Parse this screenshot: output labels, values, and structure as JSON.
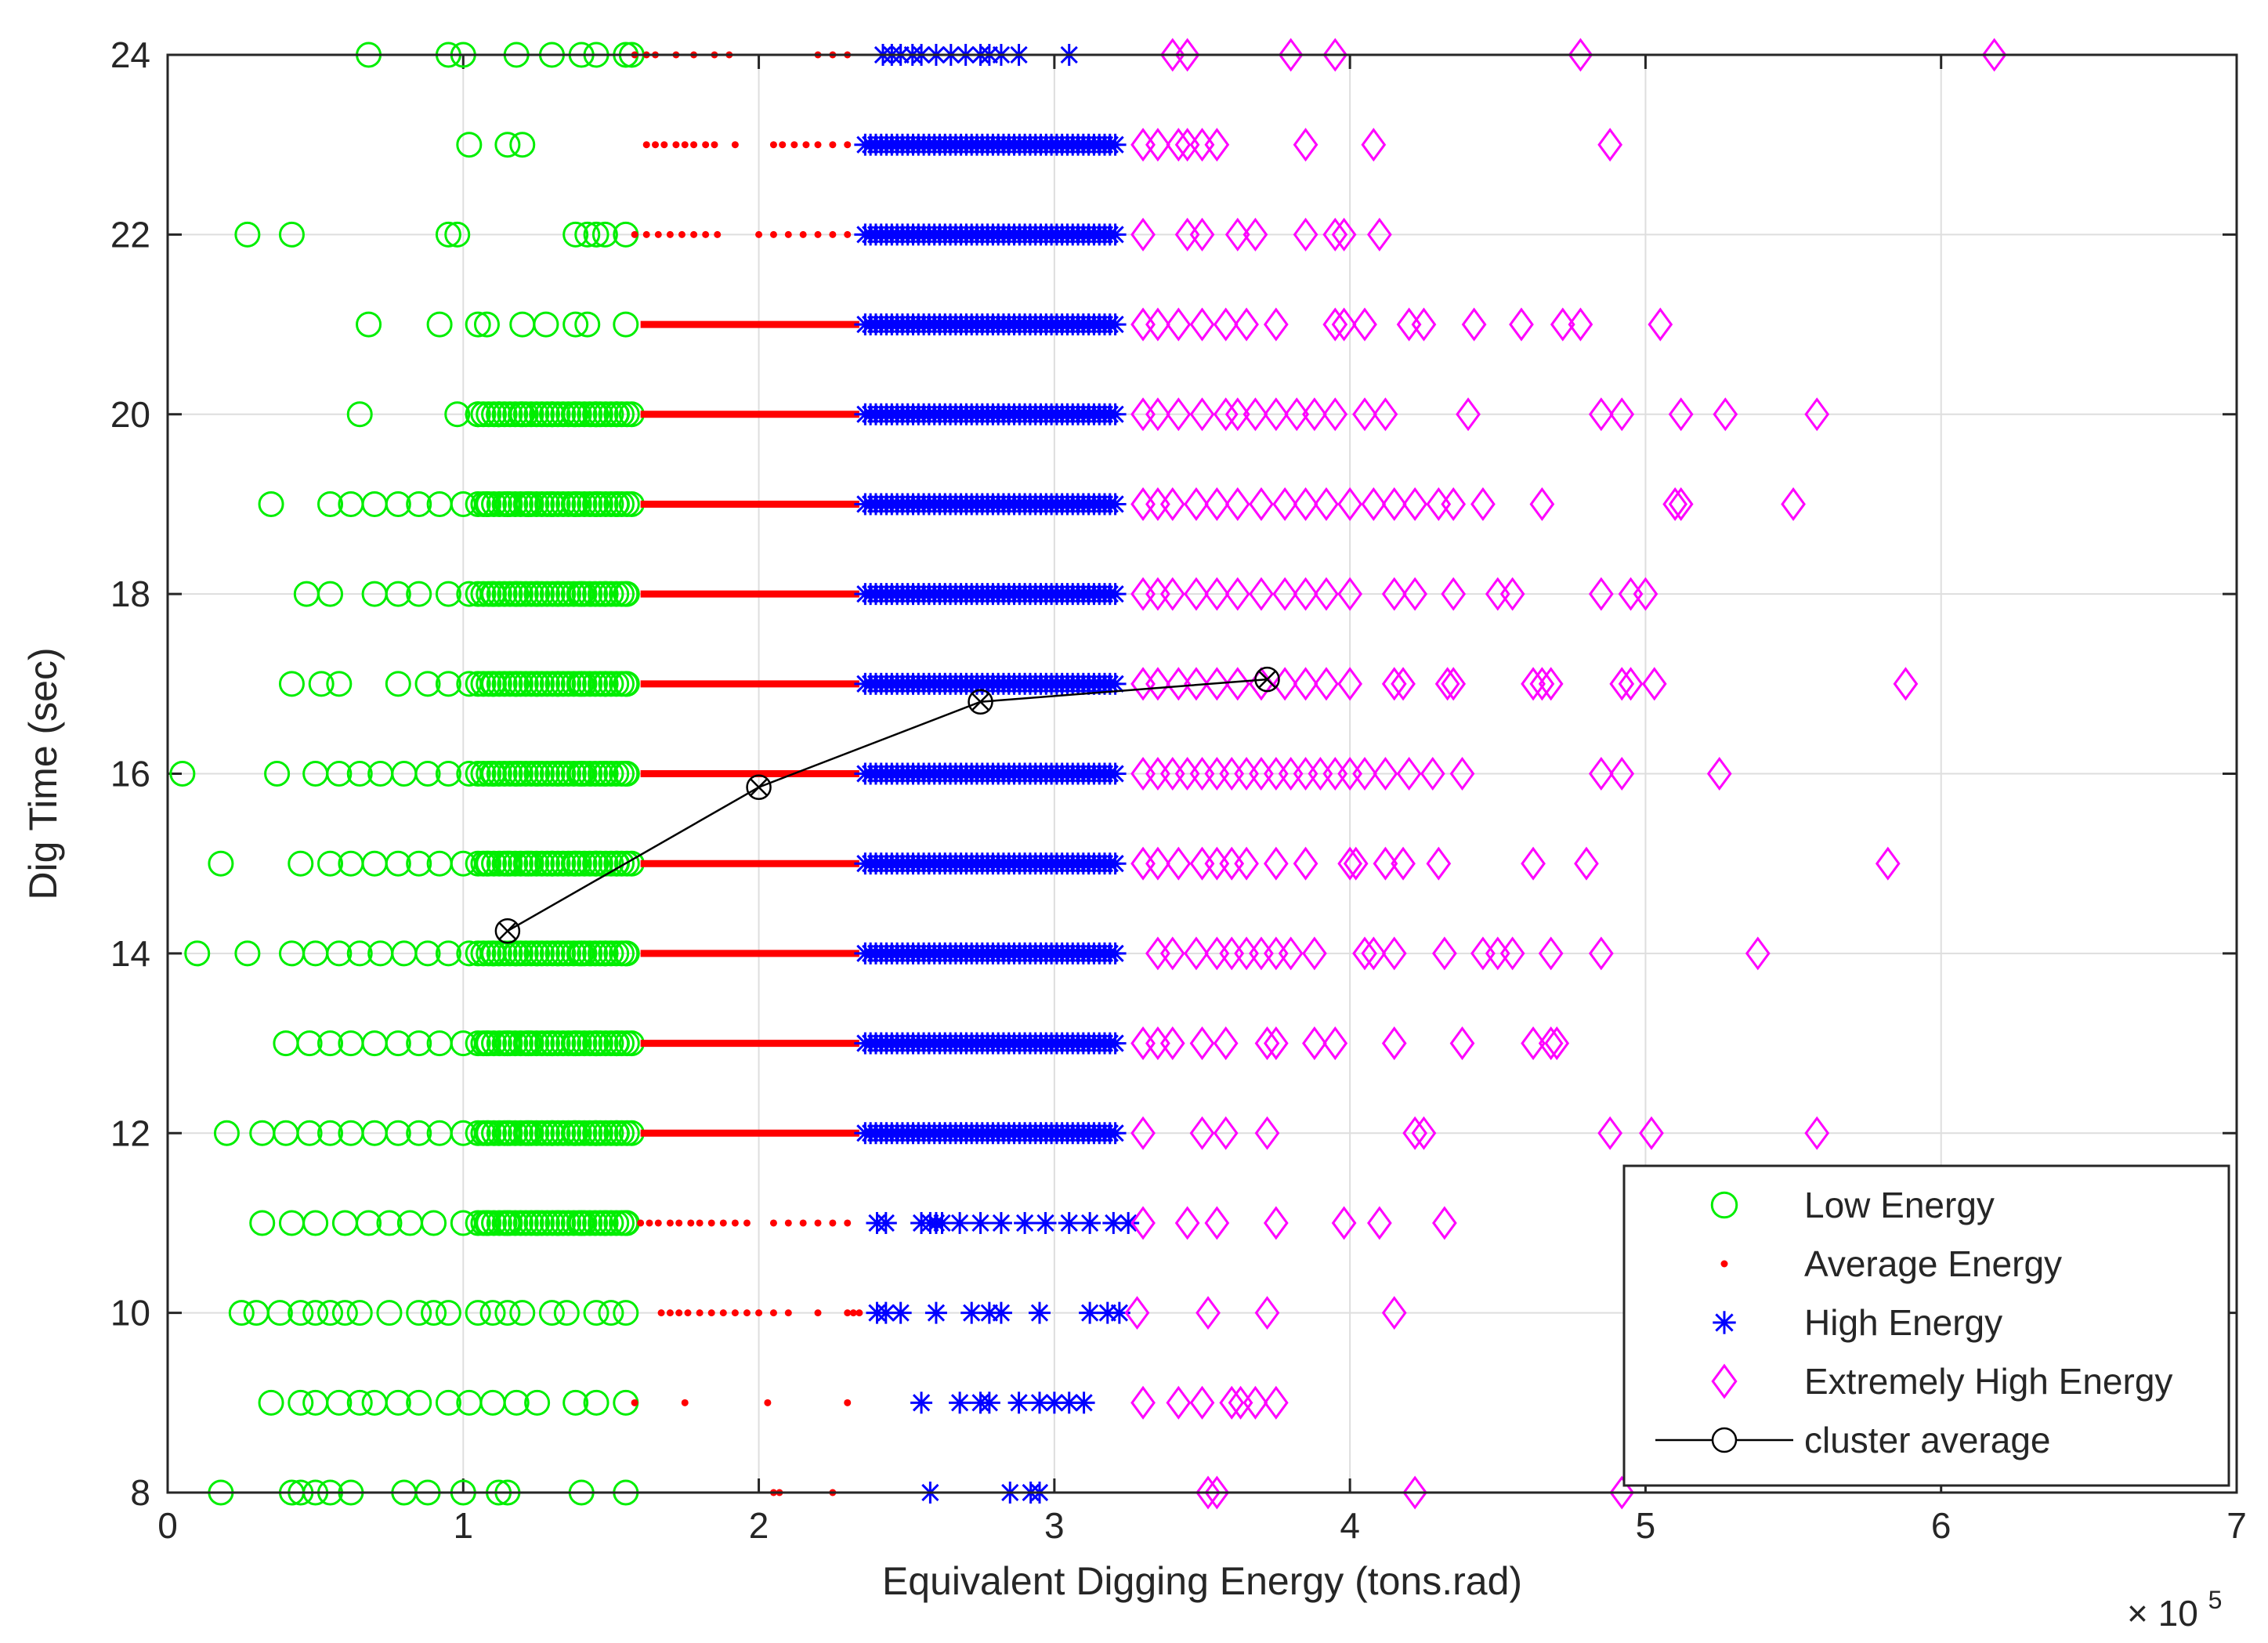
{
  "chart_data": {
    "type": "scatter",
    "xlabel": "Equivalent Digging Energy (tons.rad)",
    "ylabel": "Dig Time (sec)",
    "x_multiplier_base": "× 10",
    "x_multiplier_exp": "5",
    "xlim": [
      0,
      7
    ],
    "ylim": [
      8,
      24
    ],
    "xticks": [
      "0",
      "1",
      "2",
      "3",
      "4",
      "5",
      "6",
      "7"
    ],
    "yticks": [
      "8",
      "10",
      "12",
      "14",
      "16",
      "18",
      "20",
      "22",
      "24"
    ],
    "grid": true,
    "legend_position": "bottom-right",
    "colors": {
      "low": "#00ee00",
      "average": "#ff0000",
      "high": "#0000ff",
      "extreme": "#ff00ff",
      "average_line": "#000000"
    },
    "series": [
      {
        "name": "Low Energy",
        "marker": "circle",
        "x_range": [
          0,
          1.58
        ],
        "rows": [
          {
            "y": 8,
            "x": [
              0.18,
              0.42,
              0.45,
              0.5,
              0.55,
              0.62,
              0.8,
              0.88,
              1.0,
              1.12,
              1.15,
              1.4,
              1.55
            ]
          },
          {
            "y": 9,
            "x": [
              0.35,
              0.45,
              0.5,
              0.58,
              0.65,
              0.7,
              0.78,
              0.85,
              0.95,
              1.02,
              1.1,
              1.18,
              1.25,
              1.38,
              1.45,
              1.55
            ]
          },
          {
            "y": 10,
            "x": [
              0.25,
              0.3,
              0.38,
              0.45,
              0.5,
              0.55,
              0.6,
              0.65,
              0.75,
              0.85,
              0.9,
              0.95,
              1.05,
              1.1,
              1.15,
              1.2,
              1.3,
              1.35,
              1.45,
              1.5,
              1.55
            ]
          },
          {
            "y": 11,
            "x": [
              0.32,
              0.42,
              0.5,
              0.6,
              0.68,
              0.75,
              0.82,
              0.9,
              1.0,
              1.08,
              1.15,
              1.25,
              1.32,
              1.4,
              1.48,
              1.55
            ]
          },
          {
            "y": 12,
            "x": [
              0.2,
              0.32,
              0.4,
              0.48,
              0.55,
              0.62,
              0.7,
              0.78,
              0.85,
              0.92,
              1.0,
              1.08,
              1.15,
              1.22,
              1.3,
              1.38,
              1.45,
              1.52,
              1.57
            ]
          },
          {
            "y": 13,
            "x": [
              0.4,
              0.48,
              0.55,
              0.62,
              0.7,
              0.78,
              0.85,
              0.92,
              1.0,
              1.08,
              1.15,
              1.22,
              1.3,
              1.38,
              1.45,
              1.52,
              1.57
            ]
          },
          {
            "y": 14,
            "x": [
              0.1,
              0.27,
              0.42,
              0.5,
              0.58,
              0.65,
              0.72,
              0.8,
              0.88,
              0.95,
              1.02,
              1.1,
              1.18,
              1.25,
              1.32,
              1.4,
              1.48,
              1.55
            ]
          },
          {
            "y": 15,
            "x": [
              0.18,
              0.45,
              0.55,
              0.62,
              0.7,
              0.78,
              0.85,
              0.92,
              1.0,
              1.08,
              1.15,
              1.22,
              1.3,
              1.38,
              1.45,
              1.52,
              1.57
            ]
          },
          {
            "y": 16,
            "x": [
              0.05,
              0.37,
              0.5,
              0.58,
              0.65,
              0.72,
              0.8,
              0.88,
              0.95,
              1.02,
              1.1,
              1.18,
              1.25,
              1.32,
              1.4,
              1.48,
              1.55
            ]
          },
          {
            "y": 17,
            "x": [
              0.42,
              0.52,
              0.58,
              0.78,
              0.88,
              0.95,
              1.02,
              1.1,
              1.18,
              1.25,
              1.32,
              1.4,
              1.48,
              1.55
            ]
          },
          {
            "y": 18,
            "x": [
              0.47,
              0.55,
              0.7,
              0.78,
              0.85,
              0.95,
              1.02,
              1.1,
              1.18,
              1.25,
              1.32,
              1.4,
              1.48,
              1.55
            ]
          },
          {
            "y": 19,
            "x": [
              0.35,
              0.55,
              0.62,
              0.7,
              0.78,
              0.85,
              0.92,
              1.0,
              1.08,
              1.15,
              1.22,
              1.3,
              1.38,
              1.45,
              1.52,
              1.57
            ]
          },
          {
            "y": 20,
            "x": [
              0.65,
              0.98,
              1.05,
              1.12,
              1.2,
              1.3,
              1.38,
              1.45,
              1.52,
              1.57
            ]
          },
          {
            "y": 21,
            "x": [
              0.68,
              0.92,
              1.05,
              1.08,
              1.2,
              1.28,
              1.38,
              1.42,
              1.55
            ]
          },
          {
            "y": 22,
            "x": [
              0.27,
              0.42,
              0.95,
              0.98,
              1.38,
              1.42,
              1.45,
              1.48,
              1.55
            ]
          },
          {
            "y": 23,
            "x": [
              1.02,
              1.15,
              1.2
            ]
          },
          {
            "y": 24,
            "x": [
              0.68,
              0.95,
              1.0,
              1.18,
              1.3,
              1.4,
              1.45,
              1.55,
              1.57
            ]
          }
        ]
      },
      {
        "name": "Average Energy",
        "marker": "dot",
        "x_range": [
          1.58,
          2.35
        ],
        "rows": [
          {
            "y": 8,
            "x": [
              2.05,
              2.07,
              2.25
            ]
          },
          {
            "y": 9,
            "x": [
              1.58,
              1.75,
              2.03,
              2.3
            ]
          },
          {
            "y": 10,
            "x": [
              1.67,
              1.7,
              1.73,
              1.76,
              1.8,
              1.84,
              1.88,
              1.92,
              1.96,
              2.0,
              2.05,
              2.1,
              2.2,
              2.3,
              2.32,
              2.34
            ]
          },
          {
            "y": 11,
            "x": [
              1.6,
              1.63,
              1.66,
              1.7,
              1.73,
              1.77,
              1.8,
              1.84,
              1.88,
              1.92,
              1.96,
              2.05,
              2.1,
              2.15,
              2.2,
              2.25,
              2.3
            ]
          },
          {
            "y": 22,
            "x": [
              1.58,
              1.62,
              1.66,
              1.7,
              1.74,
              1.78,
              1.82,
              1.86,
              2.0,
              2.05,
              2.1,
              2.15,
              2.2,
              2.25,
              2.3
            ]
          },
          {
            "y": 23,
            "x": [
              1.62,
              1.65,
              1.68,
              1.72,
              1.75,
              1.78,
              1.82,
              1.85,
              1.92,
              2.05,
              2.08,
              2.12,
              2.16,
              2.2,
              2.25,
              2.3
            ]
          },
          {
            "y": 24,
            "x": [
              1.58,
              1.62,
              1.65,
              1.72,
              1.78,
              1.85,
              1.9,
              2.2,
              2.25,
              2.3
            ]
          }
        ]
      },
      {
        "name": "High Energy",
        "marker": "asterisk",
        "x_range": [
          2.35,
          3.25
        ],
        "rows": [
          {
            "y": 8,
            "x": [
              2.58,
              2.85,
              2.92,
              2.95
            ]
          },
          {
            "y": 9,
            "x": [
              2.55,
              2.68,
              2.75,
              2.78,
              2.88,
              2.95,
              3.0,
              3.05,
              3.1
            ]
          },
          {
            "y": 10,
            "x": [
              2.4,
              2.43,
              2.48,
              2.6,
              2.72,
              2.78,
              2.82,
              2.95,
              3.12,
              3.18,
              3.22
            ]
          },
          {
            "y": 11,
            "x": [
              2.4,
              2.43,
              2.55,
              2.58,
              2.6,
              2.62,
              2.68,
              2.75,
              2.82,
              2.9,
              2.97,
              3.05,
              3.12,
              3.2,
              3.25
            ]
          },
          {
            "y": 24,
            "x": [
              2.42,
              2.45,
              2.48,
              2.52,
              2.55,
              2.6,
              2.65,
              2.7,
              2.75,
              2.78,
              2.82,
              2.88,
              3.05
            ]
          }
        ]
      },
      {
        "name": "Extremely High Energy",
        "marker": "diamond",
        "x_range": [
          3.25,
          6.2
        ],
        "rows": [
          {
            "y": 8,
            "x": [
              3.52,
              3.55,
              4.22,
              4.92
            ]
          },
          {
            "y": 9,
            "x": [
              3.3,
              3.42,
              3.5,
              3.6,
              3.63,
              3.68,
              3.75
            ]
          },
          {
            "y": 10,
            "x": [
              3.28,
              3.52,
              3.72,
              4.15
            ]
          },
          {
            "y": 11,
            "x": [
              3.3,
              3.45,
              3.55,
              3.75,
              3.98,
              4.1,
              4.32
            ]
          },
          {
            "y": 12,
            "x": [
              3.3,
              3.5,
              3.58,
              3.72,
              4.22,
              4.25,
              4.88,
              5.02,
              5.58
            ]
          },
          {
            "y": 13,
            "x": [
              3.3,
              3.35,
              3.4,
              3.5,
              3.58,
              3.72,
              3.75,
              3.88,
              3.95,
              4.15,
              4.38,
              4.62,
              4.68,
              4.7
            ]
          },
          {
            "y": 14,
            "x": [
              3.35,
              3.4,
              3.48,
              3.55,
              3.6,
              3.65,
              3.7,
              3.75,
              3.8,
              3.88,
              4.05,
              4.08,
              4.15,
              4.32,
              4.45,
              4.5,
              4.55,
              4.68,
              4.85,
              5.38
            ]
          },
          {
            "y": 15,
            "x": [
              3.3,
              3.35,
              3.42,
              3.5,
              3.55,
              3.6,
              3.65,
              3.75,
              3.85,
              4.0,
              4.02,
              4.12,
              4.18,
              4.3,
              4.62,
              4.8,
              5.82
            ]
          },
          {
            "y": 16,
            "x": [
              3.3,
              3.35,
              3.4,
              3.45,
              3.5,
              3.55,
              3.6,
              3.65,
              3.7,
              3.75,
              3.8,
              3.85,
              3.9,
              3.95,
              4.0,
              4.05,
              4.12,
              4.2,
              4.28,
              4.38,
              4.85,
              4.92,
              5.25
            ]
          },
          {
            "y": 17,
            "x": [
              3.3,
              3.35,
              3.42,
              3.48,
              3.55,
              3.62,
              3.7,
              3.78,
              3.85,
              3.92,
              4.0,
              4.15,
              4.18,
              4.33,
              4.35,
              4.62,
              4.65,
              4.68,
              4.92,
              4.95,
              5.03,
              5.88
            ]
          },
          {
            "y": 18,
            "x": [
              3.3,
              3.35,
              3.4,
              3.48,
              3.55,
              3.62,
              3.7,
              3.78,
              3.85,
              3.92,
              4.0,
              4.15,
              4.22,
              4.35,
              4.5,
              4.55,
              4.85,
              4.95,
              5.0
            ]
          },
          {
            "y": 19,
            "x": [
              3.3,
              3.35,
              3.4,
              3.48,
              3.55,
              3.62,
              3.7,
              3.78,
              3.85,
              3.92,
              4.0,
              4.08,
              4.15,
              4.22,
              4.3,
              4.35,
              4.45,
              4.65,
              5.1,
              5.12,
              5.5
            ]
          },
          {
            "y": 20,
            "x": [
              3.3,
              3.35,
              3.42,
              3.5,
              3.58,
              3.62,
              3.68,
              3.75,
              3.82,
              3.88,
              3.95,
              4.05,
              4.12,
              4.4,
              4.85,
              4.92,
              5.12,
              5.27,
              5.58
            ]
          },
          {
            "y": 21,
            "x": [
              3.3,
              3.35,
              3.42,
              3.5,
              3.58,
              3.65,
              3.75,
              3.95,
              3.98,
              4.05,
              4.2,
              4.25,
              4.42,
              4.58,
              4.72,
              4.78,
              5.05
            ]
          },
          {
            "y": 22,
            "x": [
              3.3,
              3.45,
              3.5,
              3.62,
              3.68,
              3.85,
              3.95,
              3.98,
              4.1
            ]
          },
          {
            "y": 23,
            "x": [
              3.3,
              3.35,
              3.42,
              3.45,
              3.5,
              3.55,
              3.85,
              4.08,
              4.88
            ]
          },
          {
            "y": 24,
            "x": [
              3.4,
              3.45,
              3.8,
              3.95,
              4.78,
              6.18
            ]
          }
        ]
      },
      {
        "name": "cluster average",
        "marker": "circle-x-line",
        "points": [
          {
            "x": 1.15,
            "y": 14.25
          },
          {
            "x": 2.0,
            "y": 15.85
          },
          {
            "x": 2.75,
            "y": 16.8
          },
          {
            "x": 3.72,
            "y": 17.05
          }
        ]
      }
    ]
  }
}
